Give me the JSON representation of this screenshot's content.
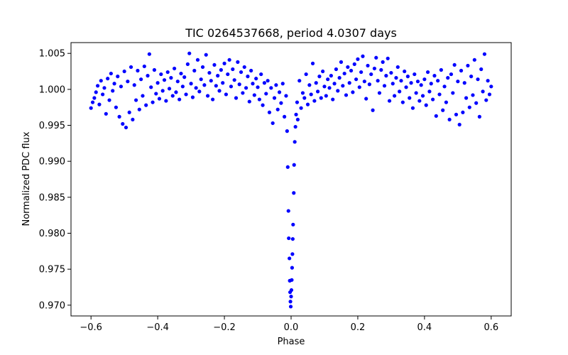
{
  "chart_data": {
    "type": "scatter",
    "title": "TIC 0264537668, period 4.0307 days",
    "xlabel": "Phase",
    "ylabel": "Normalized PDC flux",
    "xlim": [
      -0.66,
      0.66
    ],
    "ylim": [
      0.9685,
      1.0065
    ],
    "xticks": [
      -0.6,
      -0.4,
      -0.2,
      0.0,
      0.2,
      0.4,
      0.6
    ],
    "xtick_labels": [
      "−0.6",
      "−0.4",
      "−0.2",
      "0.0",
      "0.2",
      "0.4",
      "0.6"
    ],
    "yticks": [
      0.97,
      0.975,
      0.98,
      0.985,
      0.99,
      0.995,
      1.0,
      1.005
    ],
    "ytick_labels": [
      "0.970",
      "0.975",
      "0.980",
      "0.985",
      "0.990",
      "0.995",
      "1.000",
      "1.005"
    ],
    "grid": false,
    "marker_color": "#0000ff",
    "series": [
      {
        "points": [
          [
            -0.6,
            0.9974
          ],
          [
            -0.595,
            0.9982
          ],
          [
            -0.59,
            0.9988
          ],
          [
            -0.585,
            0.9996
          ],
          [
            -0.58,
            1.0005
          ],
          [
            -0.575,
            0.9979
          ],
          [
            -0.57,
            1.0012
          ],
          [
            -0.565,
            0.9993
          ],
          [
            -0.56,
            1.0002
          ],
          [
            -0.555,
            0.9966
          ],
          [
            -0.55,
            1.0015
          ],
          [
            -0.545,
            0.9985
          ],
          [
            -0.54,
            1.0022
          ],
          [
            -0.535,
            0.9998
          ],
          [
            -0.53,
            1.0008
          ],
          [
            -0.525,
            0.9975
          ],
          [
            -0.52,
            1.0018
          ],
          [
            -0.515,
            0.9962
          ],
          [
            -0.51,
            1.0004
          ],
          [
            -0.505,
            0.9952
          ],
          [
            -0.5,
            1.0025
          ],
          [
            -0.495,
            0.9947
          ],
          [
            -0.49,
            1.0011
          ],
          [
            -0.485,
            0.9968
          ],
          [
            -0.48,
            1.0031
          ],
          [
            -0.475,
            0.9958
          ],
          [
            -0.47,
            1.0006
          ],
          [
            -0.465,
            0.9985
          ],
          [
            -0.46,
            1.0026
          ],
          [
            -0.455,
            0.9972
          ],
          [
            -0.45,
            1.0014
          ],
          [
            -0.445,
            0.9991
          ],
          [
            -0.44,
            1.0032
          ],
          [
            -0.435,
            0.9978
          ],
          [
            -0.43,
            1.0019
          ],
          [
            -0.425,
            1.0049
          ],
          [
            -0.42,
            1.0003
          ],
          [
            -0.415,
            0.9982
          ],
          [
            -0.41,
            1.0027
          ],
          [
            -0.405,
            0.9994
          ],
          [
            -0.4,
            1.0009
          ],
          [
            -0.395,
            0.9987
          ],
          [
            -0.39,
            1.0021
          ],
          [
            -0.385,
            0.9998
          ],
          [
            -0.38,
            1.0013
          ],
          [
            -0.375,
            0.9984
          ],
          [
            -0.37,
            1.0024
          ],
          [
            -0.365,
            1.0001
          ],
          [
            -0.36,
            1.0016
          ],
          [
            -0.355,
            0.9991
          ],
          [
            -0.35,
            1.0029
          ],
          [
            -0.345,
            0.9996
          ],
          [
            -0.34,
            1.0011
          ],
          [
            -0.335,
            0.9986
          ],
          [
            -0.33,
            1.0022
          ],
          [
            -0.325,
            1.0004
          ],
          [
            -0.32,
            1.0017
          ],
          [
            -0.315,
            0.9993
          ],
          [
            -0.31,
            1.0035
          ],
          [
            -0.305,
            1.005
          ],
          [
            -0.3,
            1.0008
          ],
          [
            -0.295,
            0.9989
          ],
          [
            -0.29,
            1.0026
          ],
          [
            -0.285,
            1.0002
          ],
          [
            -0.28,
            1.0041
          ],
          [
            -0.275,
            0.9997
          ],
          [
            -0.27,
            1.0014
          ],
          [
            -0.265,
            1.0031
          ],
          [
            -0.26,
            1.0006
          ],
          [
            -0.255,
            1.0048
          ],
          [
            -0.25,
            0.9991
          ],
          [
            -0.245,
            1.0023
          ],
          [
            -0.24,
            1.0012
          ],
          [
            -0.235,
            0.9986
          ],
          [
            -0.23,
            1.0034
          ],
          [
            -0.225,
            1.0005
          ],
          [
            -0.22,
            1.0019
          ],
          [
            -0.215,
            0.9998
          ],
          [
            -0.21,
            1.0027
          ],
          [
            -0.205,
            1.0009
          ],
          [
            -0.2,
            1.0036
          ],
          [
            -0.195,
            0.9993
          ],
          [
            -0.19,
            1.0021
          ],
          [
            -0.185,
            1.0041
          ],
          [
            -0.18,
            1.0004
          ],
          [
            -0.175,
            1.0028
          ],
          [
            -0.17,
            1.0013
          ],
          [
            -0.165,
            0.9988
          ],
          [
            -0.16,
            1.0038
          ],
          [
            -0.155,
            1.0007
          ],
          [
            -0.15,
            1.0024
          ],
          [
            -0.145,
            0.9995
          ],
          [
            -0.14,
            1.0031
          ],
          [
            -0.135,
            1.0002
          ],
          [
            -0.13,
            1.0018
          ],
          [
            -0.125,
            0.9983
          ],
          [
            -0.12,
            1.0026
          ],
          [
            -0.115,
            1.0008
          ],
          [
            -0.11,
            0.9992
          ],
          [
            -0.105,
            1.0015
          ],
          [
            -0.1,
            1.0003
          ],
          [
            -0.095,
            0.9986
          ],
          [
            -0.09,
            1.0021
          ],
          [
            -0.085,
            0.9978
          ],
          [
            -0.08,
            1.0009
          ],
          [
            -0.075,
            0.9994
          ],
          [
            -0.07,
            1.0012
          ],
          [
            -0.065,
            0.9968
          ],
          [
            -0.06,
            1.0002
          ],
          [
            -0.055,
            0.9953
          ],
          [
            -0.05,
            0.9988
          ],
          [
            -0.045,
            1.0006
          ],
          [
            -0.04,
            0.9972
          ],
          [
            -0.035,
            0.9996
          ],
          [
            -0.03,
            0.9981
          ],
          [
            -0.025,
            1.0008
          ],
          [
            -0.02,
            0.9962
          ],
          [
            -0.015,
            0.9991
          ],
          [
            -0.012,
            0.9942
          ],
          [
            -0.01,
            0.9892
          ],
          [
            -0.008,
            0.9831
          ],
          [
            -0.007,
            0.9793
          ],
          [
            -0.005,
            0.9765
          ],
          [
            -0.004,
            0.9734
          ],
          [
            -0.003,
            0.9718
          ],
          [
            -0.002,
            0.9705
          ],
          [
            -0.001,
            0.9698
          ],
          [
            0.0,
            0.9712
          ],
          [
            0.001,
            0.9721
          ],
          [
            0.002,
            0.9735
          ],
          [
            0.003,
            0.9752
          ],
          [
            0.004,
            0.9771
          ],
          [
            0.005,
            0.9792
          ],
          [
            0.006,
            0.9812
          ],
          [
            0.008,
            0.9856
          ],
          [
            0.009,
            0.9895
          ],
          [
            0.011,
            0.9927
          ],
          [
            0.013,
            0.9948
          ],
          [
            0.015,
            0.9965
          ],
          [
            0.018,
            0.9982
          ],
          [
            0.02,
            0.9958
          ],
          [
            0.025,
            1.0012
          ],
          [
            0.03,
            0.9974
          ],
          [
            0.035,
            0.9995
          ],
          [
            0.04,
            0.9988
          ],
          [
            0.045,
            1.0021
          ],
          [
            0.05,
            0.9979
          ],
          [
            0.055,
            1.0006
          ],
          [
            0.06,
            0.9993
          ],
          [
            0.065,
            1.0036
          ],
          [
            0.07,
            0.9984
          ],
          [
            0.075,
            1.0009
          ],
          [
            0.08,
            0.9997
          ],
          [
            0.085,
            1.0018
          ],
          [
            0.09,
            0.9988
          ],
          [
            0.095,
            1.0025
          ],
          [
            0.1,
            1.0004
          ],
          [
            0.105,
            0.9991
          ],
          [
            0.11,
            1.0014
          ],
          [
            0.115,
            1.0002
          ],
          [
            0.12,
            1.0019
          ],
          [
            0.125,
            0.9986
          ],
          [
            0.13,
            1.0008
          ],
          [
            0.135,
            1.0028
          ],
          [
            0.14,
            0.9998
          ],
          [
            0.145,
            1.0016
          ],
          [
            0.15,
            1.0038
          ],
          [
            0.155,
            1.0005
          ],
          [
            0.16,
            1.0022
          ],
          [
            0.165,
            0.9992
          ],
          [
            0.17,
            1.0031
          ],
          [
            0.175,
            1.0009
          ],
          [
            0.18,
            1.0026
          ],
          [
            0.185,
            0.9996
          ],
          [
            0.19,
            1.0035
          ],
          [
            0.195,
            1.0014
          ],
          [
            0.2,
            1.0042
          ],
          [
            0.205,
            1.0003
          ],
          [
            0.21,
            1.0024
          ],
          [
            0.215,
            1.0046
          ],
          [
            0.22,
            1.0011
          ],
          [
            0.225,
            0.9987
          ],
          [
            0.23,
            1.0033
          ],
          [
            0.235,
            1.0007
          ],
          [
            0.24,
            1.0021
          ],
          [
            0.245,
            0.9971
          ],
          [
            0.25,
            1.0029
          ],
          [
            0.255,
            1.0044
          ],
          [
            0.26,
            1.0012
          ],
          [
            0.265,
            0.9995
          ],
          [
            0.27,
            1.0027
          ],
          [
            0.275,
            1.0038
          ],
          [
            0.28,
            1.0005
          ],
          [
            0.285,
            1.0019
          ],
          [
            0.29,
            1.0043
          ],
          [
            0.295,
            0.9984
          ],
          [
            0.3,
            1.0023
          ],
          [
            0.305,
            1.0008
          ],
          [
            0.31,
            0.9991
          ],
          [
            0.315,
            1.0016
          ],
          [
            0.32,
            1.0031
          ],
          [
            0.325,
            0.9997
          ],
          [
            0.33,
            1.0012
          ],
          [
            0.335,
            0.9982
          ],
          [
            0.34,
            1.0025
          ],
          [
            0.345,
            1.0003
          ],
          [
            0.35,
            1.0018
          ],
          [
            0.355,
            0.9988
          ],
          [
            0.36,
            1.0009
          ],
          [
            0.365,
            0.9974
          ],
          [
            0.37,
            1.0021
          ],
          [
            0.375,
            0.9995
          ],
          [
            0.38,
            1.0011
          ],
          [
            0.385,
            0.9984
          ],
          [
            0.39,
            1.0006
          ],
          [
            0.395,
            0.9991
          ],
          [
            0.4,
            1.0014
          ],
          [
            0.405,
            0.9978
          ],
          [
            0.41,
            1.0024
          ],
          [
            0.415,
            0.9997
          ],
          [
            0.42,
            1.0008
          ],
          [
            0.425,
            0.9986
          ],
          [
            0.43,
            1.0019
          ],
          [
            0.435,
            0.9963
          ],
          [
            0.44,
            1.0012
          ],
          [
            0.445,
            0.9993
          ],
          [
            0.45,
            1.0027
          ],
          [
            0.455,
            0.9971
          ],
          [
            0.46,
            1.0004
          ],
          [
            0.465,
            0.9982
          ],
          [
            0.47,
            1.0016
          ],
          [
            0.475,
            0.9958
          ],
          [
            0.48,
            1.0021
          ],
          [
            0.485,
            0.9995
          ],
          [
            0.49,
            1.0034
          ],
          [
            0.495,
            0.9965
          ],
          [
            0.5,
            1.0011
          ],
          [
            0.505,
            0.9951
          ],
          [
            0.51,
            1.0026
          ],
          [
            0.515,
            0.9968
          ],
          [
            0.52,
            1.0009
          ],
          [
            0.525,
            0.9988
          ],
          [
            0.53,
            1.0033
          ],
          [
            0.535,
            0.9975
          ],
          [
            0.54,
            1.0018
          ],
          [
            0.545,
            0.9992
          ],
          [
            0.55,
            1.0041
          ],
          [
            0.555,
            0.9981
          ],
          [
            0.56,
            1.0014
          ],
          [
            0.565,
            0.9962
          ],
          [
            0.57,
            1.0028
          ],
          [
            0.575,
            0.9997
          ],
          [
            0.58,
            1.0049
          ],
          [
            0.585,
            0.9985
          ],
          [
            0.59,
            1.0012
          ],
          [
            0.595,
            0.9993
          ],
          [
            0.6,
            1.0004
          ]
        ]
      }
    ]
  }
}
